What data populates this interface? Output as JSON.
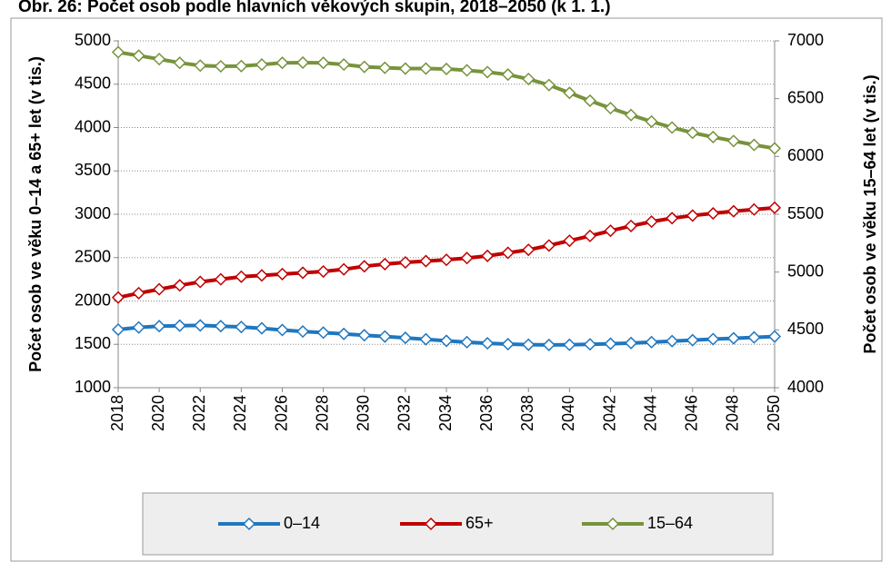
{
  "chart_data": {
    "type": "line",
    "title": "Obr. 26: Počet osob podle hlavních věkových skupin, 2018–2050 (k 1. 1.)",
    "y_label": "Počet osob ve věku 0–14 a 65+ let (v tis.)",
    "y2_label": "Počet osob ve věku 15–64 let (v tis.)",
    "x": [
      2018,
      2019,
      2020,
      2021,
      2022,
      2023,
      2024,
      2025,
      2026,
      2027,
      2028,
      2029,
      2030,
      2031,
      2032,
      2033,
      2034,
      2035,
      2036,
      2037,
      2038,
      2039,
      2040,
      2041,
      2042,
      2043,
      2044,
      2045,
      2046,
      2047,
      2048,
      2049,
      2050
    ],
    "xlim": [
      2018,
      2050
    ],
    "xticks": [
      2018,
      2020,
      2022,
      2024,
      2026,
      2028,
      2030,
      2032,
      2034,
      2036,
      2038,
      2040,
      2042,
      2044,
      2046,
      2048,
      2050
    ],
    "ylim": [
      1000,
      5000
    ],
    "yticks": [
      1000,
      1500,
      2000,
      2500,
      3000,
      3500,
      4000,
      4500,
      5000
    ],
    "y2lim": [
      4000,
      7000
    ],
    "y2ticks": [
      4000,
      4500,
      5000,
      5500,
      6000,
      6500,
      7000
    ],
    "grid": true,
    "legend": "bottom",
    "series": [
      {
        "name": "0–14",
        "color": "#1f77c0",
        "values": [
          1670,
          1695,
          1710,
          1715,
          1718,
          1710,
          1700,
          1685,
          1665,
          1648,
          1635,
          1620,
          1605,
          1590,
          1575,
          1558,
          1540,
          1525,
          1512,
          1502,
          1496,
          1493,
          1495,
          1500,
          1507,
          1515,
          1525,
          1537,
          1548,
          1560,
          1570,
          1580,
          1590
        ]
      },
      {
        "name": "65+",
        "color": "#c00000",
        "values": [
          2040,
          2090,
          2135,
          2180,
          2220,
          2250,
          2280,
          2295,
          2310,
          2325,
          2340,
          2365,
          2400,
          2425,
          2445,
          2460,
          2475,
          2495,
          2520,
          2555,
          2590,
          2640,
          2695,
          2750,
          2810,
          2865,
          2915,
          2955,
          2985,
          3010,
          3035,
          3055,
          3075
        ]
      },
      {
        "name": "15–64",
        "color": "#77933c",
        "axis": "y2",
        "values": [
          6902,
          6872,
          6842,
          6810,
          6786,
          6780,
          6782,
          6795,
          6810,
          6812,
          6810,
          6795,
          6775,
          6767,
          6760,
          6760,
          6757,
          6745,
          6730,
          6708,
          6670,
          6618,
          6550,
          6482,
          6418,
          6358,
          6302,
          6250,
          6205,
          6168,
          6134,
          6100,
          6070
        ]
      }
    ]
  }
}
